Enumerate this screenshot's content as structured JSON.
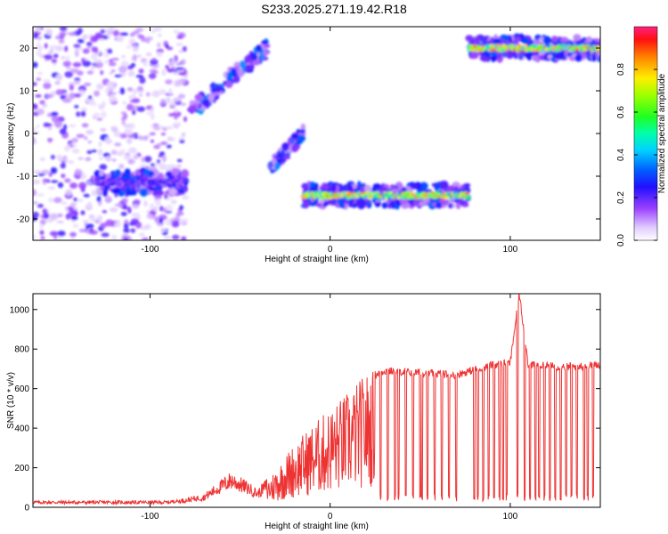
{
  "title": "S233.2025.271.19.42.R18",
  "chart_data": [
    {
      "type": "heatmap",
      "xlabel": "Height of straight line (km)",
      "ylabel": "Frequency (Hz)",
      "xlim": [
        -165,
        150
      ],
      "ylim": [
        -25,
        25
      ],
      "xticks": [
        -100,
        0,
        100
      ],
      "yticks": [
        -20,
        -10,
        0,
        10,
        20
      ],
      "colorbar": {
        "label": "Normalized spectral amplitude",
        "range": [
          0,
          1
        ],
        "ticks": [
          0.0,
          0.2,
          0.4,
          0.6,
          0.8
        ]
      },
      "features": [
        {
          "x": [
            -165,
            -80
          ],
          "y": [
            -25,
            25
          ],
          "amplitude": 0.15,
          "kind": "scatter-noise"
        },
        {
          "x": [
            -130,
            -80
          ],
          "y": [
            -13,
            -10
          ],
          "amplitude": 0.3,
          "kind": "band"
        },
        {
          "x": [
            -78,
            -35
          ],
          "y": [
            5,
            20
          ],
          "amplitude": 0.3,
          "kind": "rising-streak"
        },
        {
          "x": [
            -33,
            -15
          ],
          "y": [
            -8,
            0
          ],
          "amplitude": 0.3,
          "kind": "streak"
        },
        {
          "x": [
            -15,
            77
          ],
          "y": [
            -15,
            -14
          ],
          "amplitude": 0.9,
          "kind": "band"
        },
        {
          "x": [
            77,
            150
          ],
          "y": [
            19,
            21
          ],
          "amplitude": 0.95,
          "kind": "band"
        }
      ]
    },
    {
      "type": "line",
      "xlabel": "Height of straight line (km)",
      "ylabel": "SNR (10 * v/v)",
      "xlim": [
        -165,
        150
      ],
      "ylim": [
        0,
        1080
      ],
      "xticks": [
        -100,
        0,
        100
      ],
      "yticks": [
        0,
        200,
        400,
        600,
        800,
        1000
      ],
      "color": "#ee3333",
      "envelope": {
        "x": [
          -165,
          -90,
          -70,
          -55,
          -45,
          -40,
          -30,
          -20,
          -10,
          0,
          10,
          20,
          30,
          50,
          70,
          90,
          100,
          105,
          110,
          130,
          150
        ],
        "y": [
          25,
          25,
          60,
          160,
          110,
          80,
          190,
          310,
          400,
          480,
          560,
          650,
          690,
          680,
          670,
          720,
          730,
          1080,
          720,
          710,
          720
        ]
      },
      "dropouts_x": [
        28,
        32,
        36,
        38,
        42,
        46,
        50,
        51,
        54,
        58,
        62,
        66,
        70,
        80,
        82,
        85,
        88,
        91,
        94,
        96,
        98,
        104,
        108,
        111,
        114,
        116,
        119,
        122,
        125,
        128,
        131,
        134,
        137,
        141,
        143,
        146
      ]
    }
  ]
}
